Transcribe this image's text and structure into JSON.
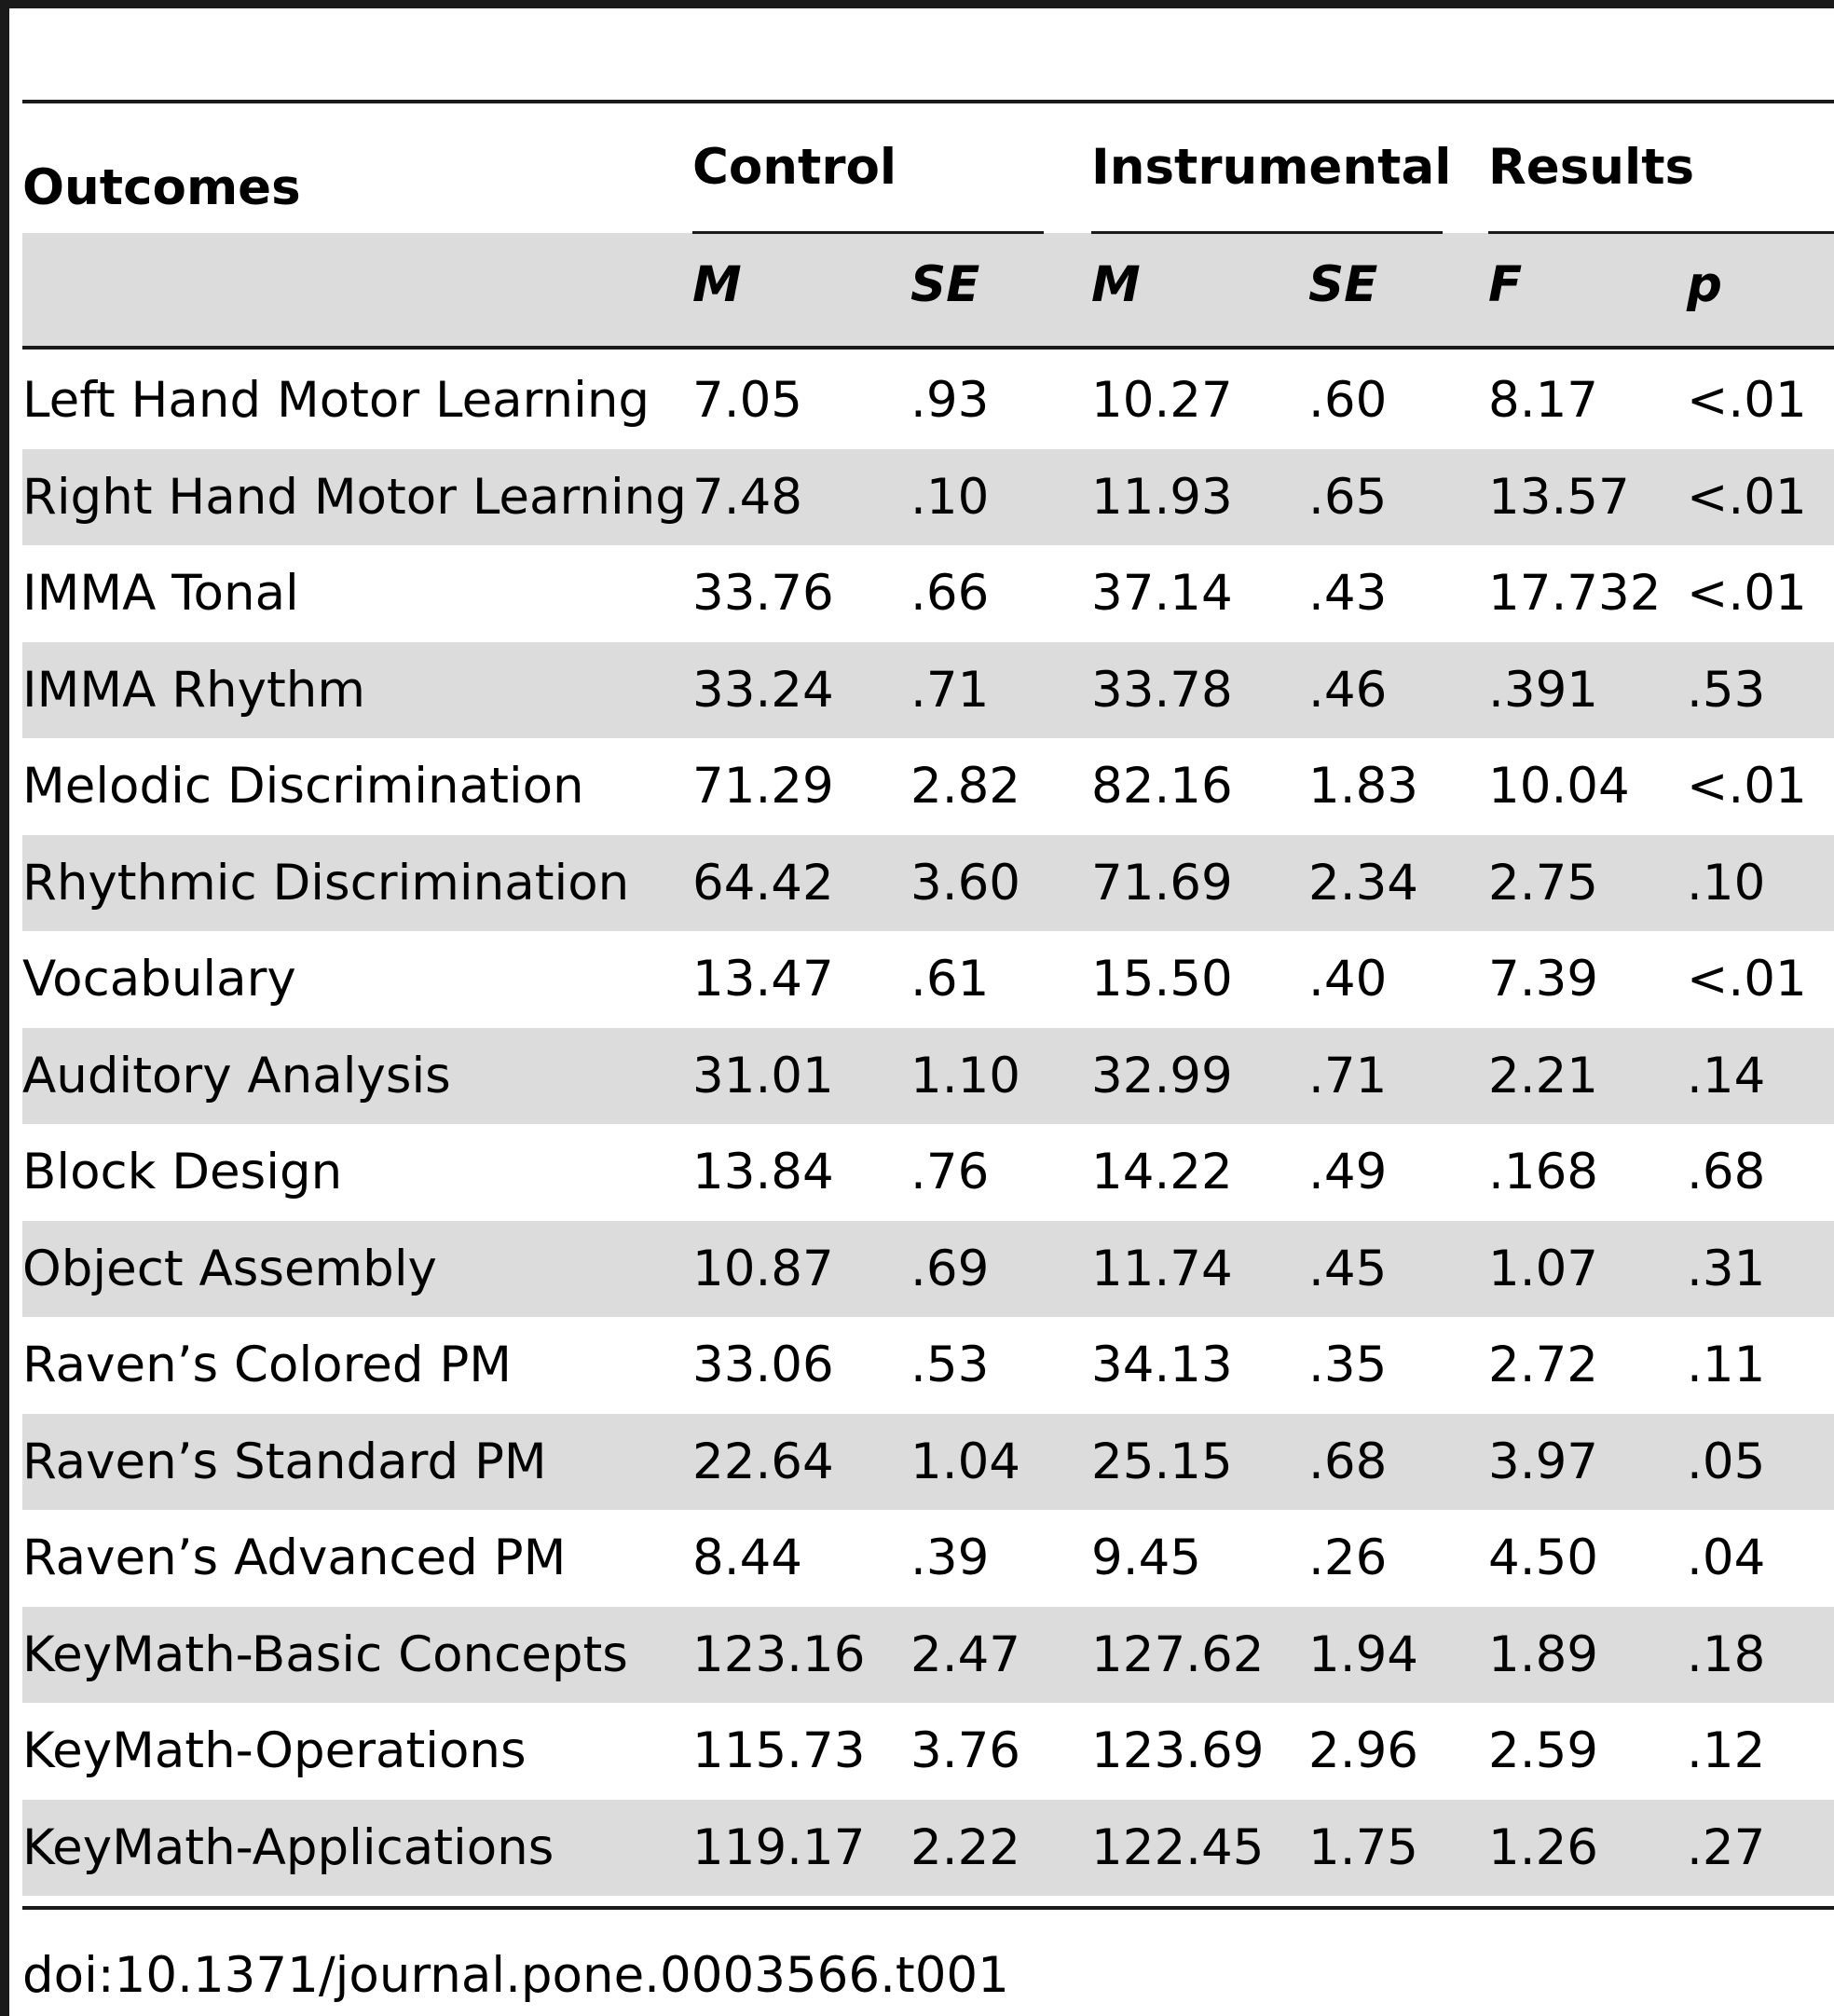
{
  "table": {
    "headers": {
      "outcomes": "Outcomes",
      "control": "Control",
      "instrumental": "Instrumental",
      "results": "Results"
    },
    "subheaders": {
      "control_m": "M",
      "control_se": "SE",
      "instrumental_m": "M",
      "instrumental_se": "SE",
      "results_f": "F",
      "results_p": "p"
    },
    "rows": [
      {
        "outcome": "Left Hand Motor Learning",
        "control_m": "7.05",
        "control_se": ".93",
        "instrumental_m": "10.27",
        "instrumental_se": ".60",
        "f": "8.17",
        "p": "<.01"
      },
      {
        "outcome": "Right Hand Motor Learning",
        "control_m": "7.48",
        "control_se": ".10",
        "instrumental_m": "11.93",
        "instrumental_se": ".65",
        "f": "13.57",
        "p": "<.01"
      },
      {
        "outcome": "IMMA Tonal",
        "control_m": "33.76",
        "control_se": ".66",
        "instrumental_m": "37.14",
        "instrumental_se": ".43",
        "f": "17.732",
        "p": "<.01"
      },
      {
        "outcome": "IMMA Rhythm",
        "control_m": "33.24",
        "control_se": ".71",
        "instrumental_m": "33.78",
        "instrumental_se": ".46",
        "f": ".391",
        "p": ".53"
      },
      {
        "outcome": "Melodic Discrimination",
        "control_m": "71.29",
        "control_se": "2.82",
        "instrumental_m": "82.16",
        "instrumental_se": "1.83",
        "f": "10.04",
        "p": "<.01"
      },
      {
        "outcome": "Rhythmic Discrimination",
        "control_m": "64.42",
        "control_se": "3.60",
        "instrumental_m": "71.69",
        "instrumental_se": "2.34",
        "f": "2.75",
        "p": ".10"
      },
      {
        "outcome": "Vocabulary",
        "control_m": "13.47",
        "control_se": ".61",
        "instrumental_m": "15.50",
        "instrumental_se": ".40",
        "f": "7.39",
        "p": "<.01"
      },
      {
        "outcome": "Auditory Analysis",
        "control_m": "31.01",
        "control_se": "1.10",
        "instrumental_m": "32.99",
        "instrumental_se": ".71",
        "f": "2.21",
        "p": ".14"
      },
      {
        "outcome": "Block Design",
        "control_m": "13.84",
        "control_se": ".76",
        "instrumental_m": "14.22",
        "instrumental_se": ".49",
        "f": ".168",
        "p": ".68"
      },
      {
        "outcome": "Object Assembly",
        "control_m": "10.87",
        "control_se": ".69",
        "instrumental_m": "11.74",
        "instrumental_se": ".45",
        "f": "1.07",
        "p": ".31"
      },
      {
        "outcome": "Raven’s Colored PM",
        "control_m": "33.06",
        "control_se": ".53",
        "instrumental_m": "34.13",
        "instrumental_se": ".35",
        "f": "2.72",
        "p": ".11"
      },
      {
        "outcome": "Raven’s Standard PM",
        "control_m": "22.64",
        "control_se": "1.04",
        "instrumental_m": "25.15",
        "instrumental_se": ".68",
        "f": "3.97",
        "p": ".05"
      },
      {
        "outcome": "Raven’s Advanced PM",
        "control_m": "8.44",
        "control_se": ".39",
        "instrumental_m": "9.45",
        "instrumental_se": ".26",
        "f": "4.50",
        "p": ".04"
      },
      {
        "outcome": "KeyMath-Basic Concepts",
        "control_m": "123.16",
        "control_se": "2.47",
        "instrumental_m": "127.62",
        "instrumental_se": "1.94",
        "f": "1.89",
        "p": ".18"
      },
      {
        "outcome": "KeyMath-Operations",
        "control_m": "115.73",
        "control_se": "3.76",
        "instrumental_m": "123.69",
        "instrumental_se": "2.96",
        "f": "2.59",
        "p": ".12"
      },
      {
        "outcome": "KeyMath-Applications",
        "control_m": "119.17",
        "control_se": "2.22",
        "instrumental_m": "122.45",
        "instrumental_se": "1.75",
        "f": "1.26",
        "p": ".27"
      }
    ]
  },
  "footer": {
    "doi": "doi:10.1371/journal.pone.0003566.t001"
  }
}
